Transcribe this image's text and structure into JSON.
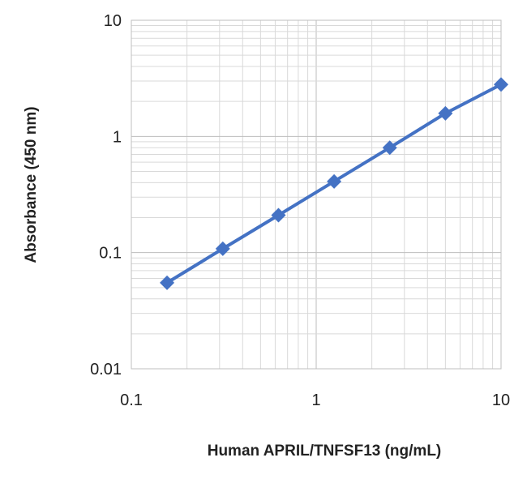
{
  "chart_data": {
    "type": "line",
    "title": "",
    "xlabel": "Human APRIL/TNFSF13 (ng/mL)",
    "ylabel": "Absorbance (450 nm)",
    "xscale": "log",
    "yscale": "log",
    "xlim": [
      0.1,
      10
    ],
    "ylim": [
      0.01,
      10
    ],
    "grid": true,
    "x_ticks": [
      "0.1",
      "1",
      "10"
    ],
    "y_ticks": [
      "0.01",
      "0.1",
      "1",
      "10"
    ],
    "series": [
      {
        "color": "#4472c4",
        "marker": "diamond",
        "x": [
          0.156,
          0.3125,
          0.625,
          1.25,
          2.5,
          5,
          10
        ],
        "y": [
          0.055,
          0.108,
          0.21,
          0.41,
          0.8,
          1.58,
          2.8
        ]
      }
    ]
  }
}
